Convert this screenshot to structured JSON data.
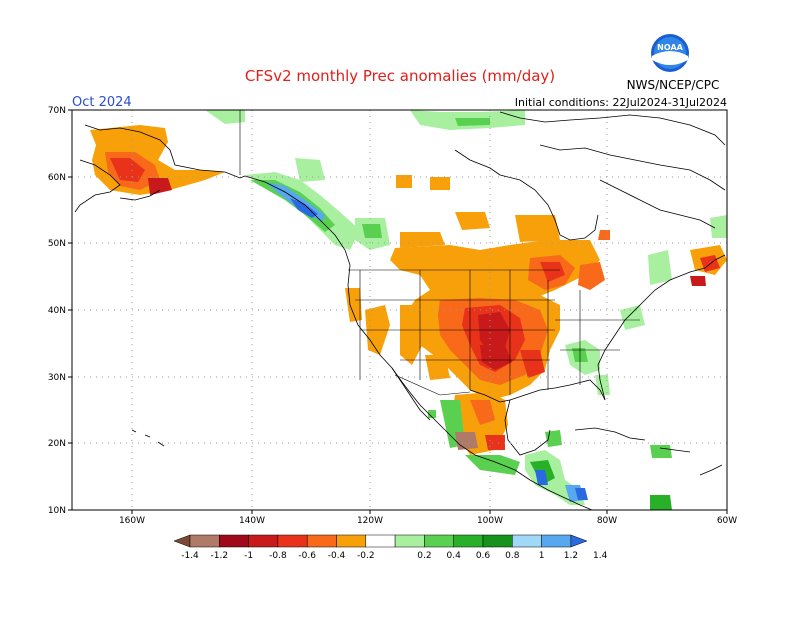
{
  "header": {
    "title": "CFSv2 monthly Prec anomalies (mm/day)",
    "month": "Oct 2024",
    "initial_conditions": "Initial conditions: 22Jul2024-31Jul2024",
    "agency": "NWS/NCEP/CPC",
    "logo_text": "NOAA"
  },
  "map": {
    "lat_labels": [
      "70N",
      "60N",
      "50N",
      "40N",
      "30N",
      "20N",
      "10N"
    ],
    "lon_labels": [
      "160W",
      "140W",
      "120W",
      "100W",
      "80W",
      "60W"
    ],
    "colors": {
      "title": "#e0201a",
      "month": "#2a4fd0",
      "frame": "#000000",
      "coast": "#000000",
      "grid": "#9a9a9a"
    }
  },
  "colorbar": {
    "labels": [
      "-1.4",
      "-1.2",
      "-1",
      "-0.8",
      "-0.6",
      "-0.4",
      "-0.2",
      "0.2",
      "0.4",
      "0.6",
      "0.8",
      "1",
      "1.2",
      "1.4"
    ],
    "colors": [
      "#7a4a35",
      "#b07a68",
      "#a0091a",
      "#c81a1a",
      "#e8321a",
      "#f86a1a",
      "#f8a00a",
      "#ffffff",
      "#a8f0a0",
      "#5ad050",
      "#28b028",
      "#17921a",
      "#a0d8f8",
      "#58a8f0",
      "#2a6ae0"
    ]
  }
}
